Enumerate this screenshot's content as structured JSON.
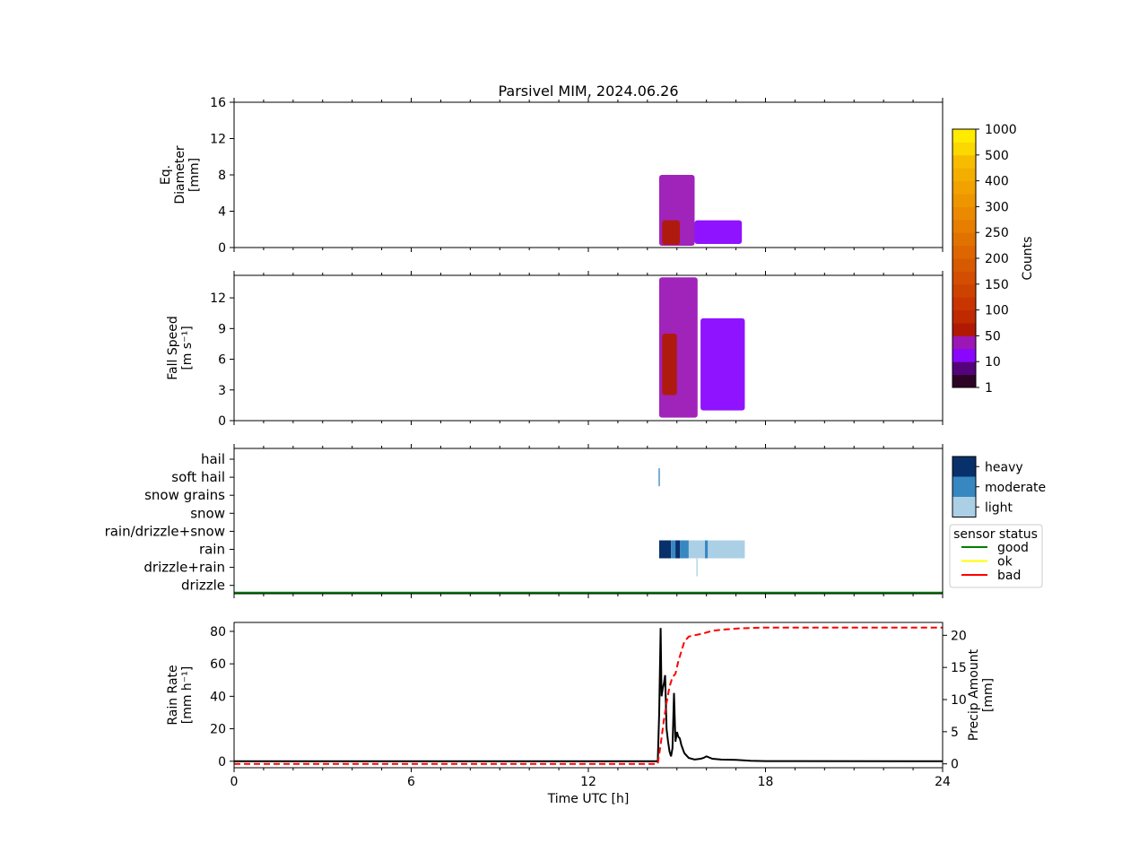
{
  "title": "Parsivel MIM, 2024.06.26",
  "chart_data": [
    {
      "type": "heatmap",
      "ylabel": [
        "Eq.",
        "Diameter",
        "[mm]"
      ],
      "ylim": [
        0,
        16
      ],
      "yticks": [
        "0",
        "4",
        "8",
        "12",
        "16"
      ],
      "ytick_values": [
        0,
        4,
        8,
        12,
        16
      ],
      "xlim": [
        0,
        24
      ],
      "blobs": [
        {
          "x": [
            14.4,
            15.6
          ],
          "y": [
            0.2,
            8.0
          ],
          "level": "50"
        },
        {
          "x": [
            14.5,
            15.1
          ],
          "y": [
            0.3,
            3.0
          ],
          "level": "100"
        },
        {
          "x": [
            15.6,
            17.2
          ],
          "y": [
            0.4,
            3.0
          ],
          "level": "10"
        }
      ]
    },
    {
      "type": "heatmap",
      "ylabel": [
        "Fall Speed",
        "[m s⁻¹]"
      ],
      "ylim": [
        0,
        14.2
      ],
      "yticks": [
        "0",
        "3",
        "6",
        "9",
        "12"
      ],
      "ytick_values": [
        0,
        3,
        6,
        9,
        12
      ],
      "xlim": [
        0,
        24
      ],
      "blobs": [
        {
          "x": [
            14.4,
            15.7
          ],
          "y": [
            0.3,
            14.0
          ],
          "level": "50"
        },
        {
          "x": [
            14.5,
            15.0
          ],
          "y": [
            2.5,
            8.5
          ],
          "level": "100"
        },
        {
          "x": [
            15.8,
            17.3
          ],
          "y": [
            1.0,
            10.0
          ],
          "level": "10"
        }
      ]
    },
    {
      "type": "heatmap",
      "categories": [
        "hail",
        "soft hail",
        "snow grains",
        "snow",
        "rain/drizzle+snow",
        "rain",
        "drizzle+rain",
        "drizzle"
      ],
      "xlim": [
        0,
        24
      ],
      "segments": [
        {
          "category": "rain",
          "x": [
            14.4,
            14.8
          ],
          "intensity": "heavy"
        },
        {
          "category": "rain",
          "x": [
            14.8,
            14.95
          ],
          "intensity": "moderate"
        },
        {
          "category": "rain",
          "x": [
            14.95,
            15.1
          ],
          "intensity": "heavy"
        },
        {
          "category": "rain",
          "x": [
            15.1,
            15.4
          ],
          "intensity": "moderate"
        },
        {
          "category": "rain",
          "x": [
            15.4,
            15.95
          ],
          "intensity": "light"
        },
        {
          "category": "rain",
          "x": [
            15.95,
            16.05
          ],
          "intensity": "moderate"
        },
        {
          "category": "rain",
          "x": [
            16.05,
            17.3
          ],
          "intensity": "light"
        },
        {
          "category": "soft hail",
          "x": [
            14.38,
            14.42
          ],
          "intensity": "moderate"
        },
        {
          "category": "drizzle+rain",
          "x": [
            15.66,
            15.7
          ],
          "intensity": "light"
        }
      ],
      "sensor_status_value": "good"
    },
    {
      "type": "line",
      "ylabel": [
        "Rain Rate",
        "[mm h⁻¹]"
      ],
      "ylabel_right": [
        "Precip Amount",
        "[mm]"
      ],
      "xlabel": "Time UTC [h]",
      "xlim": [
        0,
        24
      ],
      "xticks": [
        "0",
        "6",
        "12",
        "18",
        "24"
      ],
      "xtick_values": [
        0,
        6,
        12,
        18,
        24
      ],
      "ylim": [
        -4,
        85.5
      ],
      "yticks": [
        "0",
        "20",
        "40",
        "60",
        "80"
      ],
      "ytick_values": [
        0,
        20,
        40,
        60,
        80
      ],
      "ylim_right": [
        -0.6,
        22
      ],
      "yticks_right": [
        "0",
        "5",
        "10",
        "15",
        "20"
      ],
      "ytick_values_right": [
        0,
        5,
        10,
        15,
        20
      ],
      "series": [
        {
          "axis": "left",
          "x": [
            0,
            14.35,
            14.4,
            14.45,
            14.48,
            14.52,
            14.56,
            14.6,
            14.65,
            14.7,
            14.75,
            14.8,
            14.85,
            14.9,
            14.95,
            15.0,
            15.05,
            15.1,
            15.15,
            15.25,
            15.4,
            15.6,
            15.8,
            15.9,
            16.0,
            16.2,
            16.5,
            17.0,
            17.5,
            18.0,
            24.0
          ],
          "y": [
            0,
            0,
            30,
            82,
            40,
            45,
            48,
            53,
            20,
            12,
            6,
            3,
            8,
            42,
            12,
            18,
            15,
            14,
            10,
            5,
            2,
            1,
            1.5,
            2,
            3,
            1.5,
            1,
            0.8,
            0.3,
            0.1,
            0
          ]
        },
        {
          "axis": "right",
          "x": [
            0,
            14.35,
            14.45,
            14.55,
            14.65,
            14.75,
            14.85,
            14.95,
            15.05,
            15.15,
            15.25,
            15.4,
            15.6,
            15.9,
            16.2,
            16.6,
            17.2,
            18.0,
            24.0
          ],
          "y": [
            0,
            0,
            3,
            6.5,
            9.5,
            12,
            13.5,
            14,
            16,
            17.5,
            19,
            19.8,
            20.0,
            20.3,
            20.7,
            20.9,
            21.1,
            21.2,
            21.2
          ]
        }
      ]
    }
  ],
  "colorbar": {
    "label": "Counts",
    "ticks": [
      "1",
      "10",
      "50",
      "100",
      "150",
      "200",
      "250",
      "300",
      "400",
      "500",
      "1000"
    ],
    "colors": [
      "#2d0326",
      "#54047a",
      "#8a06ff",
      "#9b17b6",
      "#b01a05",
      "#bf2a00",
      "#c83500",
      "#ce4200",
      "#d34e00",
      "#d85a00",
      "#dd6600",
      "#e27200",
      "#e77e00",
      "#eb8a00",
      "#ee9600",
      "#f1a200",
      "#f4ae00",
      "#f7bb00",
      "#fad800",
      "#ffeb00"
    ]
  },
  "intensity_legend": {
    "items": [
      {
        "label": "heavy",
        "color": "#08306b"
      },
      {
        "label": "moderate",
        "color": "#3787c0"
      },
      {
        "label": "light",
        "color": "#abd0e6"
      }
    ]
  },
  "status_legend": {
    "title": "sensor status",
    "items": [
      {
        "label": "good",
        "color": "#008000"
      },
      {
        "label": "ok",
        "color": "#ffff00"
      },
      {
        "label": "bad",
        "color": "#ff0000"
      }
    ]
  },
  "colors": {
    "rain_rate_line": "#000000",
    "precip_amount_line": "#ff0000",
    "level_10": "#8a06ff",
    "level_50": "#9b17b6",
    "level_100": "#b01a05"
  }
}
